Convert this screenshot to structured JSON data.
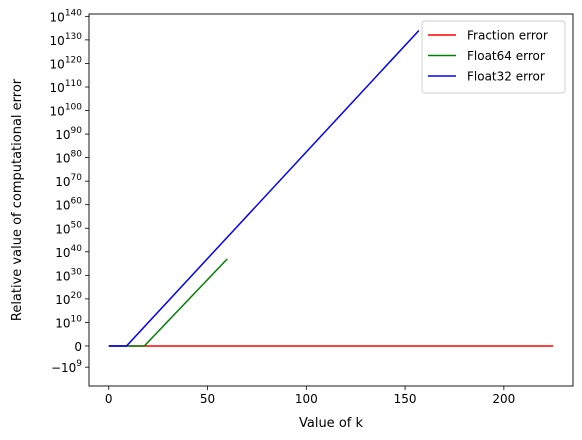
{
  "chart_data": {
    "type": "line",
    "title": "",
    "xlabel": "Value of k",
    "ylabel": "Relative value of computational error",
    "xlim": [
      -10,
      235
    ],
    "xticks": [
      0,
      50,
      100,
      150,
      200
    ],
    "ylim": [
      -17,
      141
    ],
    "yscale": "symlog",
    "yticks": [
      {
        "label": "−10",
        "exp": "9",
        "pos": -9
      },
      {
        "label": "0",
        "exp": "",
        "pos": 0
      },
      {
        "label": "10",
        "exp": "10",
        "pos": 10
      },
      {
        "label": "10",
        "exp": "20",
        "pos": 20
      },
      {
        "label": "10",
        "exp": "30",
        "pos": 30
      },
      {
        "label": "10",
        "exp": "40",
        "pos": 40
      },
      {
        "label": "10",
        "exp": "50",
        "pos": 50
      },
      {
        "label": "10",
        "exp": "60",
        "pos": 60
      },
      {
        "label": "10",
        "exp": "70",
        "pos": 70
      },
      {
        "label": "10",
        "exp": "80",
        "pos": 80
      },
      {
        "label": "10",
        "exp": "90",
        "pos": 90
      },
      {
        "label": "10",
        "exp": "100",
        "pos": 100
      },
      {
        "label": "10",
        "exp": "110",
        "pos": 110
      },
      {
        "label": "10",
        "exp": "120",
        "pos": 120
      },
      {
        "label": "10",
        "exp": "130",
        "pos": 130
      },
      {
        "label": "10",
        "exp": "140",
        "pos": 140
      }
    ],
    "grid": false,
    "legend_position": "top-right",
    "series": [
      {
        "name": "Fraction error",
        "color": "#ff0000",
        "points": [
          [
            0,
            0
          ],
          [
            225,
            0
          ]
        ]
      },
      {
        "name": "Float64 error",
        "color": "#008000",
        "points": [
          [
            0,
            0
          ],
          [
            18,
            0
          ],
          [
            60,
            37
          ]
        ]
      },
      {
        "name": "Float32 error",
        "color": "#0000ff",
        "points": [
          [
            0,
            0
          ],
          [
            9,
            0
          ],
          [
            157,
            134
          ]
        ]
      }
    ]
  }
}
